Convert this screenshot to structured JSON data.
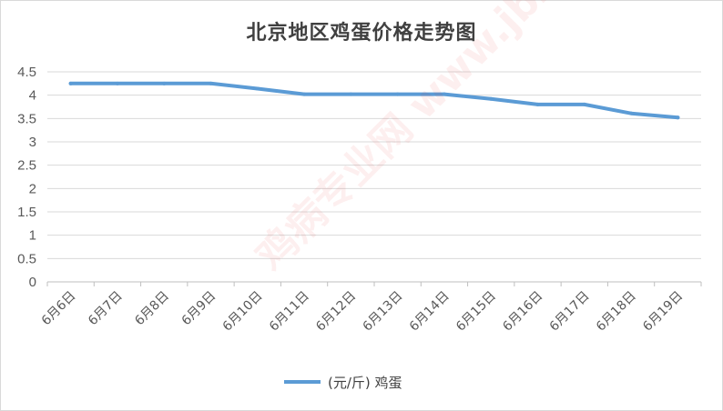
{
  "chart_data": {
    "type": "line",
    "title": "北京地区鸡蛋价格走势图",
    "categories": [
      "6月6日",
      "6月7日",
      "6月8日",
      "6月9日",
      "6月10日",
      "6月11日",
      "6月12日",
      "6月13日",
      "6月14日",
      "6月15日",
      "6月16日",
      "6月17日",
      "6月18日",
      "6月19日"
    ],
    "series": [
      {
        "name": "(元/斤) 鸡蛋",
        "color": "#5b9bd5",
        "values": [
          4.25,
          4.25,
          4.25,
          4.25,
          4.14,
          4.02,
          4.02,
          4.02,
          4.02,
          3.92,
          3.8,
          3.8,
          3.61,
          3.52
        ]
      }
    ],
    "ylim": [
      0,
      4.5
    ],
    "yticks": [
      "0",
      "0.5",
      "1",
      "1.5",
      "2",
      "2.5",
      "3",
      "3.5",
      "4",
      "4.5"
    ],
    "ytick_values": [
      0,
      0.5,
      1,
      1.5,
      2,
      2.5,
      3,
      3.5,
      4,
      4.5
    ],
    "xlabel": "",
    "ylabel": "",
    "grid": true,
    "legend_position": "bottom"
  },
  "watermark": "鸡病专业网 www.jbzyw.com"
}
